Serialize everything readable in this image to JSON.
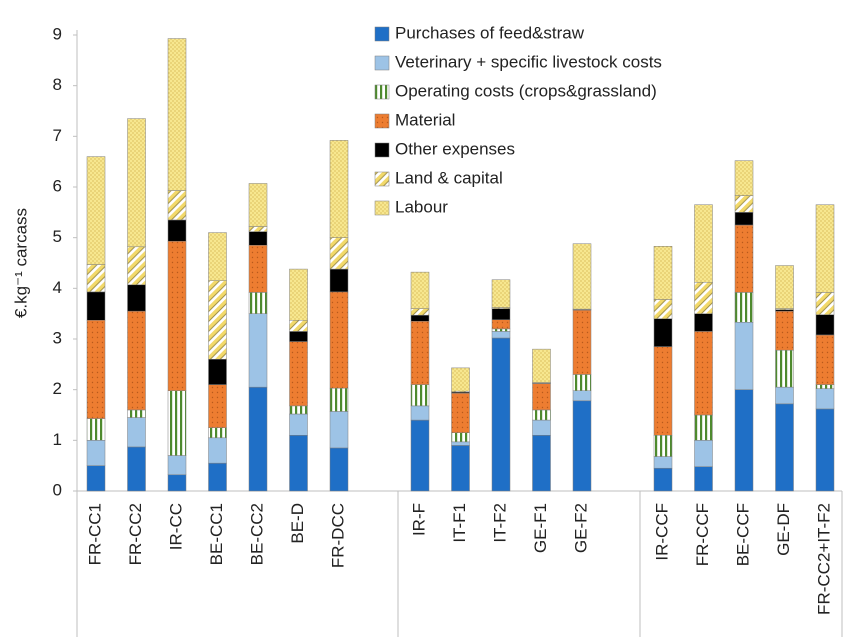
{
  "chart_data": {
    "type": "stacked_bar",
    "ylabel": "€.kg⁻¹ carcass",
    "categories": [
      "FR-CC1",
      "FR-CC2",
      "IR-CC",
      "BE-CC1",
      "BE-CC2",
      "BE-D",
      "FR-DCC",
      null,
      "IR-F",
      "IT-F1",
      "IT-F2",
      "GE-F1",
      "GE-F2",
      null,
      "IR-CCF",
      "FR-CCF",
      "BE-CCF",
      "GE-DF",
      "FR-CC2+IT-F2"
    ],
    "series": [
      {
        "name": "Purchases of feed&straw",
        "color": "#1f6fc6",
        "values": [
          0.5,
          0.87,
          0.32,
          0.55,
          2.05,
          1.1,
          0.85,
          null,
          1.4,
          0.9,
          3.02,
          1.1,
          1.78,
          null,
          0.45,
          0.48,
          2.0,
          1.72,
          1.62
        ]
      },
      {
        "name": "Veterinary + specific livestock costs",
        "color": "#9dc3e6",
        "values": [
          0.5,
          0.58,
          0.38,
          0.5,
          1.45,
          0.42,
          0.72,
          null,
          0.28,
          0.07,
          0.13,
          0.3,
          0.2,
          null,
          0.23,
          0.52,
          1.33,
          0.33,
          0.4
        ]
      },
      {
        "name": "Operating costs (crops&grassland)",
        "color": "#4e8a2e",
        "values": [
          0.43,
          0.15,
          1.28,
          0.2,
          0.42,
          0.16,
          0.46,
          null,
          0.42,
          0.18,
          0.05,
          0.2,
          0.32,
          null,
          0.42,
          0.5,
          0.59,
          0.73,
          0.08
        ]
      },
      {
        "name": "Material",
        "color": "#ed7d31",
        "values": [
          1.94,
          1.95,
          2.95,
          0.85,
          0.93,
          1.27,
          1.9,
          null,
          1.25,
          0.78,
          0.18,
          0.52,
          1.27,
          null,
          1.75,
          1.65,
          1.33,
          0.77,
          0.98
        ]
      },
      {
        "name": "Other expenses",
        "color": "#000000",
        "values": [
          0.56,
          0.52,
          0.42,
          0.5,
          0.27,
          0.2,
          0.45,
          null,
          0.12,
          0.02,
          0.22,
          0.01,
          0.01,
          null,
          0.55,
          0.35,
          0.25,
          0.03,
          0.4
        ]
      },
      {
        "name": "Land & capital",
        "color": "#f2d96b",
        "values": [
          0.54,
          0.75,
          0.58,
          1.55,
          0.1,
          0.22,
          0.62,
          null,
          0.13,
          0.02,
          0.02,
          0.01,
          0.01,
          null,
          0.38,
          0.62,
          0.33,
          0.02,
          0.44
        ]
      },
      {
        "name": "Labour",
        "color": "#f7e78f",
        "values": [
          2.13,
          2.53,
          3.0,
          0.95,
          0.85,
          1.01,
          1.92,
          null,
          0.72,
          0.46,
          0.55,
          0.66,
          1.29,
          null,
          1.05,
          1.53,
          0.69,
          0.85,
          1.73
        ]
      }
    ],
    "ylim": [
      0,
      9
    ],
    "yticks": [
      0,
      1,
      2,
      3,
      4,
      5,
      6,
      7,
      8,
      9
    ],
    "grid": false,
    "legend": "top"
  }
}
